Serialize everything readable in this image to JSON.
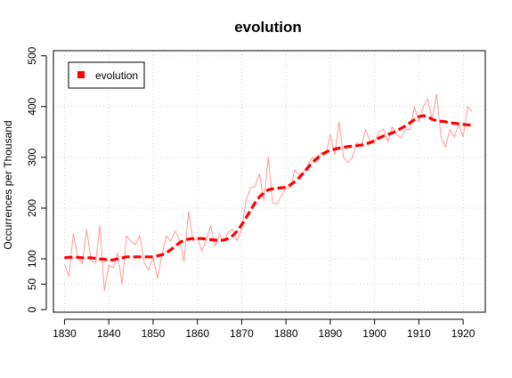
{
  "chart_data": {
    "type": "line",
    "title": "evolution",
    "xlabel": "",
    "ylabel": "Occurrences per Thousand",
    "xlim": [
      1827.5,
      1925
    ],
    "ylim": [
      -5,
      510
    ],
    "xticks": [
      1830,
      1840,
      1850,
      1860,
      1870,
      1880,
      1890,
      1900,
      1910,
      1920
    ],
    "yticks": [
      0,
      50,
      100,
      200,
      300,
      400,
      500
    ],
    "grid": true,
    "legend": {
      "position": "top-left",
      "entries": [
        "evolution"
      ]
    },
    "colors": {
      "raw": "#ff9a9a",
      "smooth": "#ff0000",
      "grid": "#d3d3d3"
    },
    "series": [
      {
        "role": "raw",
        "x": [
          1830,
          1831,
          1832,
          1833,
          1834,
          1835,
          1836,
          1837,
          1838,
          1839,
          1840,
          1841,
          1842,
          1843,
          1844,
          1845,
          1846,
          1847,
          1848,
          1849,
          1850,
          1851,
          1852,
          1853,
          1854,
          1855,
          1856,
          1857,
          1858,
          1859,
          1860,
          1861,
          1862,
          1863,
          1864,
          1865,
          1866,
          1867,
          1868,
          1869,
          1870,
          1871,
          1872,
          1873,
          1874,
          1875,
          1876,
          1877,
          1878,
          1879,
          1880,
          1881,
          1882,
          1883,
          1884,
          1885,
          1886,
          1887,
          1888,
          1889,
          1890,
          1891,
          1892,
          1893,
          1894,
          1895,
          1896,
          1897,
          1898,
          1899,
          1900,
          1901,
          1902,
          1903,
          1904,
          1905,
          1906,
          1907,
          1908,
          1909,
          1910,
          1911,
          1912,
          1913,
          1914,
          1915,
          1916,
          1917,
          1918,
          1919,
          1920,
          1921,
          1922
        ],
        "values": [
          90,
          66,
          150,
          104,
          90,
          158,
          97,
          92,
          165,
          37,
          88,
          82,
          112,
          50,
          145,
          135,
          128,
          146,
          92,
          78,
          102,
          62,
          108,
          145,
          135,
          155,
          136,
          95,
          193,
          135,
          142,
          115,
          137,
          166,
          125,
          148,
          136,
          153,
          158,
          136,
          160,
          215,
          240,
          242,
          267,
          215,
          300,
          210,
          208,
          225,
          240,
          240,
          275,
          265,
          270,
          287,
          300,
          290,
          310,
          305,
          345,
          305,
          370,
          300,
          290,
          300,
          330,
          322,
          355,
          330,
          328,
          350,
          355,
          330,
          360,
          345,
          338,
          355,
          355,
          400,
          370,
          400,
          415,
          375,
          425,
          340,
          320,
          355,
          340,
          365,
          340,
          400,
          390
        ]
      },
      {
        "role": "smooth",
        "x": [
          1830,
          1831,
          1832,
          1833,
          1834,
          1835,
          1836,
          1837,
          1838,
          1839,
          1840,
          1841,
          1842,
          1843,
          1844,
          1845,
          1846,
          1847,
          1848,
          1849,
          1850,
          1851,
          1852,
          1853,
          1854,
          1855,
          1856,
          1857,
          1858,
          1859,
          1860,
          1861,
          1862,
          1863,
          1864,
          1865,
          1866,
          1867,
          1868,
          1869,
          1870,
          1871,
          1872,
          1873,
          1874,
          1875,
          1876,
          1877,
          1878,
          1879,
          1880,
          1881,
          1882,
          1883,
          1884,
          1885,
          1886,
          1887,
          1888,
          1889,
          1890,
          1891,
          1892,
          1893,
          1894,
          1895,
          1896,
          1897,
          1898,
          1899,
          1900,
          1901,
          1902,
          1903,
          1904,
          1905,
          1906,
          1907,
          1908,
          1909,
          1910,
          1911,
          1912,
          1913,
          1914,
          1915,
          1916,
          1917,
          1918,
          1919,
          1920,
          1921,
          1922
        ],
        "values": [
          102,
          103,
          103,
          103,
          102,
          102,
          102,
          101,
          100,
          99,
          97,
          98,
          100,
          102,
          104,
          104,
          104,
          104,
          104,
          104,
          104,
          106,
          108,
          112,
          118,
          125,
          132,
          137,
          139,
          140,
          140,
          140,
          139,
          138,
          137,
          136,
          137,
          140,
          146,
          155,
          167,
          181,
          196,
          210,
          222,
          230,
          236,
          238,
          239,
          240,
          241,
          246,
          252,
          260,
          270,
          280,
          290,
          298,
          305,
          310,
          314,
          316,
          318,
          320,
          321,
          322,
          323,
          324,
          326,
          329,
          333,
          338,
          342,
          345,
          348,
          352,
          357,
          362,
          368,
          374,
          380,
          382,
          380,
          375,
          372,
          371,
          370,
          368,
          367,
          366,
          365,
          364,
          363
        ]
      }
    ]
  }
}
